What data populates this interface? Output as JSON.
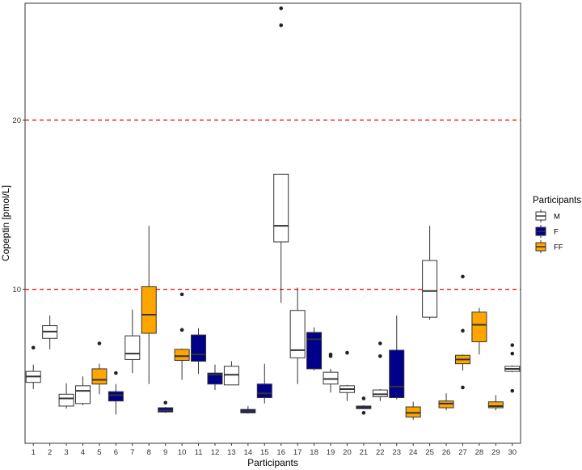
{
  "chart_data": {
    "type": "box",
    "title": "",
    "xlabel": "Participants",
    "ylabel": "Copeptin [pmol/L]",
    "ylim": [
      0.9,
      26.9
    ],
    "yticks": [
      10,
      20
    ],
    "ytick_labels": [
      "10",
      "20"
    ],
    "grid": false,
    "reference_lines": [
      {
        "y": 10,
        "style": "dashed",
        "color": "#ff0000"
      },
      {
        "y": 20,
        "style": "dashed",
        "color": "#ff0000"
      }
    ],
    "legend": {
      "title": "Participants",
      "position": "right",
      "entries": [
        {
          "label": "M",
          "fill": "#ffffff"
        },
        {
          "label": "F",
          "fill": "#00008b"
        },
        {
          "label": "FF",
          "fill": "#ffa500"
        }
      ]
    },
    "categories": [
      "1",
      "2",
      "3",
      "4",
      "5",
      "6",
      "7",
      "8",
      "9",
      "10",
      "11",
      "12",
      "13",
      "14",
      "15",
      "16",
      "17",
      "18",
      "19",
      "20",
      "21",
      "22",
      "23",
      "24",
      "25",
      "26",
      "27",
      "28",
      "29",
      "30"
    ],
    "groups": [
      "M",
      "M",
      "M",
      "M",
      "FF",
      "F",
      "M",
      "FF",
      "F",
      "FF",
      "F",
      "F",
      "M",
      "F",
      "F",
      "M",
      "M",
      "F",
      "M",
      "M",
      "F",
      "M",
      "F",
      "FF",
      "M",
      "FF",
      "FF",
      "FF",
      "FF",
      "M"
    ],
    "boxes": [
      {
        "x": "1",
        "group": "M",
        "whisker_low": 4.1,
        "q1": 4.5,
        "median": 4.85,
        "q3": 5.15,
        "whisker_high": 5.55,
        "outliers": [
          6.55
        ]
      },
      {
        "x": "2",
        "group": "M",
        "whisker_low": 6.45,
        "q1": 7.1,
        "median": 7.5,
        "q3": 7.85,
        "whisker_high": 8.45,
        "outliers": []
      },
      {
        "x": "3",
        "group": "M",
        "whisker_low": 2.95,
        "q1": 3.1,
        "median": 3.55,
        "q3": 3.8,
        "whisker_high": 4.45,
        "outliers": []
      },
      {
        "x": "4",
        "group": "M",
        "whisker_low": 3.15,
        "q1": 3.25,
        "median": 4.0,
        "q3": 4.3,
        "whisker_high": 4.85,
        "outliers": []
      },
      {
        "x": "5",
        "group": "FF",
        "whisker_low": 3.8,
        "q1": 4.4,
        "median": 4.65,
        "q3": 5.3,
        "whisker_high": 5.6,
        "outliers": [
          6.8
        ]
      },
      {
        "x": "6",
        "group": "F",
        "whisker_low": 2.6,
        "q1": 3.4,
        "median": 3.75,
        "q3": 3.95,
        "whisker_high": 4.4,
        "outliers": [
          5.05
        ]
      },
      {
        "x": "7",
        "group": "M",
        "whisker_low": 5.05,
        "q1": 5.85,
        "median": 6.2,
        "q3": 7.25,
        "whisker_high": 8.8,
        "outliers": []
      },
      {
        "x": "8",
        "group": "FF",
        "whisker_low": 4.4,
        "q1": 7.4,
        "median": 8.5,
        "q3": 10.15,
        "whisker_high": 13.75,
        "outliers": []
      },
      {
        "x": "9",
        "group": "F",
        "whisker_low": 2.7,
        "q1": 2.75,
        "median": 2.85,
        "q3": 3.0,
        "whisker_high": 3.05,
        "outliers": [
          3.3
        ]
      },
      {
        "x": "10",
        "group": "FF",
        "whisker_low": 4.65,
        "q1": 5.8,
        "median": 6.05,
        "q3": 6.45,
        "whisker_high": 6.5,
        "outliers": [
          7.6,
          9.7
        ]
      },
      {
        "x": "11",
        "group": "F",
        "whisker_low": 5.0,
        "q1": 5.75,
        "median": 6.15,
        "q3": 7.3,
        "whisker_high": 7.7,
        "outliers": []
      },
      {
        "x": "12",
        "group": "F",
        "whisker_low": 4.05,
        "q1": 4.4,
        "median": 4.95,
        "q3": 5.05,
        "whisker_high": 5.55,
        "outliers": []
      },
      {
        "x": "13",
        "group": "M",
        "whisker_low": 4.35,
        "q1": 4.35,
        "median": 4.95,
        "q3": 5.45,
        "whisker_high": 5.75,
        "outliers": []
      },
      {
        "x": "14",
        "group": "F",
        "whisker_low": 2.65,
        "q1": 2.7,
        "median": 2.8,
        "q3": 2.9,
        "whisker_high": 3.1,
        "outliers": []
      },
      {
        "x": "15",
        "group": "F",
        "whisker_low": 3.25,
        "q1": 3.6,
        "median": 3.85,
        "q3": 4.4,
        "whisker_high": 5.6,
        "outliers": []
      },
      {
        "x": "16",
        "group": "M",
        "whisker_low": 9.2,
        "q1": 12.8,
        "median": 13.75,
        "q3": 16.8,
        "whisker_high": 16.8,
        "outliers": [
          25.6,
          26.6
        ]
      },
      {
        "x": "17",
        "group": "M",
        "whisker_low": 4.4,
        "q1": 5.95,
        "median": 6.4,
        "q3": 8.75,
        "whisker_high": 10.1,
        "outliers": []
      },
      {
        "x": "18",
        "group": "F",
        "whisker_low": 5.2,
        "q1": 5.3,
        "median": 7.05,
        "q3": 7.45,
        "whisker_high": 7.75,
        "outliers": []
      },
      {
        "x": "19",
        "group": "M",
        "whisker_low": 3.9,
        "q1": 4.4,
        "median": 4.7,
        "q3": 5.1,
        "whisker_high": 5.3,
        "outliers": [
          6.05,
          6.15
        ]
      },
      {
        "x": "20",
        "group": "M",
        "whisker_low": 3.4,
        "q1": 3.9,
        "median": 4.1,
        "q3": 4.3,
        "whisker_high": 4.35,
        "outliers": [
          6.25
        ]
      },
      {
        "x": "21",
        "group": "F",
        "whisker_low": 2.95,
        "q1": 2.95,
        "median": 3.05,
        "q3": 3.1,
        "whisker_high": 3.15,
        "outliers": [
          2.7,
          3.55
        ]
      },
      {
        "x": "22",
        "group": "M",
        "whisker_low": 3.4,
        "q1": 3.65,
        "median": 3.8,
        "q3": 4.05,
        "whisker_high": 4.1,
        "outliers": [
          6.05,
          6.8
        ]
      },
      {
        "x": "23",
        "group": "F",
        "whisker_low": 3.5,
        "q1": 3.6,
        "median": 4.25,
        "q3": 6.4,
        "whisker_high": 8.45,
        "outliers": []
      },
      {
        "x": "24",
        "group": "FF",
        "whisker_low": 2.3,
        "q1": 2.45,
        "median": 2.7,
        "q3": 3.05,
        "whisker_high": 3.35,
        "outliers": []
      },
      {
        "x": "25",
        "group": "M",
        "whisker_low": 8.2,
        "q1": 8.35,
        "median": 9.9,
        "q3": 11.7,
        "whisker_high": 13.75,
        "outliers": []
      },
      {
        "x": "26",
        "group": "FF",
        "whisker_low": 2.85,
        "q1": 3.0,
        "median": 3.25,
        "q3": 3.4,
        "whisker_high": 3.85,
        "outliers": []
      },
      {
        "x": "27",
        "group": "FF",
        "whisker_low": 5.2,
        "q1": 5.6,
        "median": 5.85,
        "q3": 6.1,
        "whisker_high": 6.15,
        "outliers": [
          4.2,
          7.55,
          10.75
        ]
      },
      {
        "x": "28",
        "group": "FF",
        "whisker_low": 6.15,
        "q1": 6.9,
        "median": 7.9,
        "q3": 8.65,
        "whisker_high": 8.9,
        "outliers": []
      },
      {
        "x": "29",
        "group": "FF",
        "whisker_low": 2.85,
        "q1": 3.0,
        "median": 3.1,
        "q3": 3.35,
        "whisker_high": 3.75,
        "outliers": []
      },
      {
        "x": "30",
        "group": "M",
        "whisker_low": 5.1,
        "q1": 5.15,
        "median": 5.3,
        "q3": 5.45,
        "whisker_high": 5.5,
        "outliers": [
          4.0,
          6.2,
          6.7
        ]
      }
    ]
  },
  "colors": {
    "M": "#ffffff",
    "F": "#00008b",
    "FF": "#ffa500",
    "box_stroke": "#333333",
    "median": "#333333",
    "reference_line": "#ff0000",
    "panel_border": "#333333"
  }
}
